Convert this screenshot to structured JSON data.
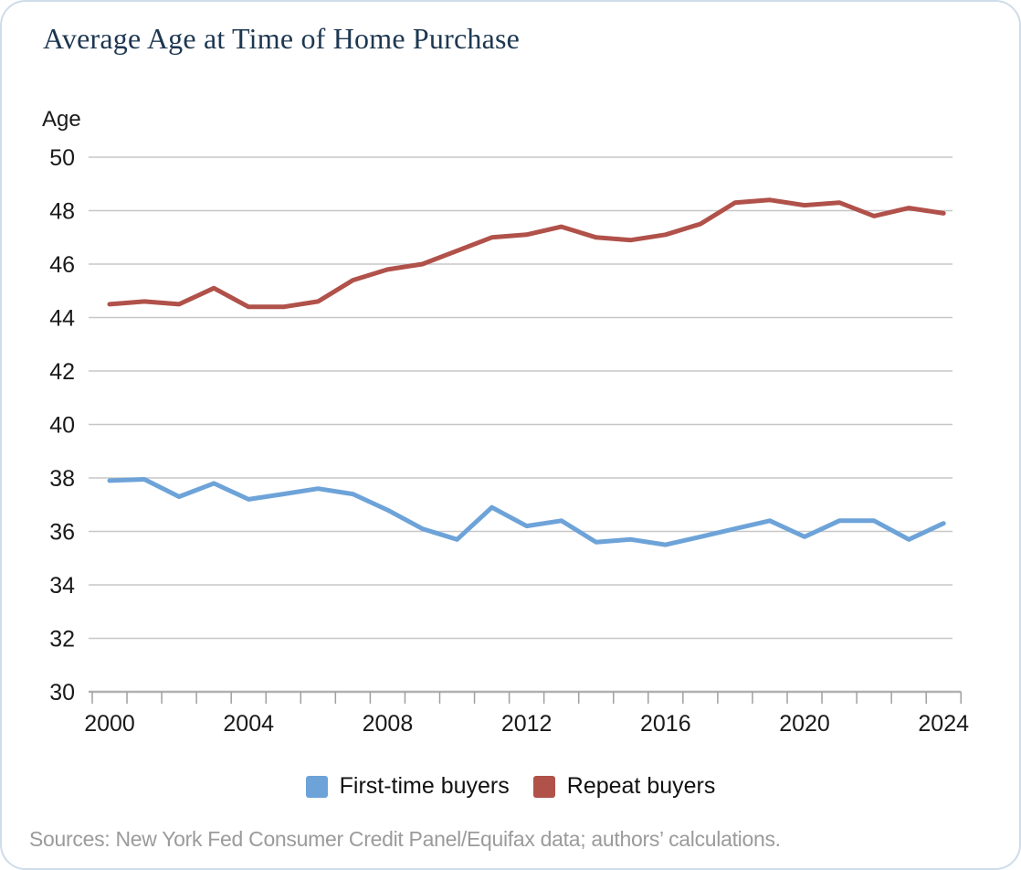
{
  "header": {
    "title": "Average Age at Time of Home Purchase"
  },
  "footer": {
    "sources": "Sources: New York Fed Consumer Credit Panel/Equifax data; authors’ calculations."
  },
  "colors": {
    "first_time_buyers": "#6da3d8",
    "repeat_buyers": "#b0514a",
    "gridline": "#c7c7c7",
    "axis_line": "#b0b0b0",
    "tick": "#a0a0a0",
    "tick_label": "#1a1a1a",
    "title_text": "#1d3751",
    "card_border": "#cfdcea"
  },
  "chart_data": {
    "type": "line",
    "title": "Average Age at Time of Home Purchase",
    "xlabel": "",
    "ylabel": "Age",
    "ylim": [
      30,
      50
    ],
    "grid": true,
    "legend_position": "bottom",
    "x": [
      2000,
      2001,
      2002,
      2003,
      2004,
      2005,
      2006,
      2007,
      2008,
      2009,
      2010,
      2011,
      2012,
      2013,
      2014,
      2015,
      2016,
      2017,
      2018,
      2019,
      2020,
      2021,
      2022,
      2023,
      2024
    ],
    "y_ticks": [
      30,
      32,
      34,
      36,
      38,
      40,
      42,
      44,
      46,
      48,
      50
    ],
    "x_tick_labels": [
      2000,
      2004,
      2008,
      2012,
      2016,
      2020,
      2024
    ],
    "series": [
      {
        "name": "First-time buyers",
        "color": "#6da3d8",
        "values": [
          37.9,
          37.95,
          37.3,
          37.8,
          37.2,
          37.4,
          37.6,
          37.4,
          36.8,
          36.1,
          35.7,
          36.9,
          36.2,
          36.4,
          35.6,
          35.7,
          35.5,
          35.8,
          36.1,
          36.4,
          35.8,
          36.4,
          36.4,
          35.7,
          36.3
        ]
      },
      {
        "name": "Repeat buyers",
        "color": "#b0514a",
        "values": [
          44.5,
          44.6,
          44.5,
          45.1,
          44.4,
          44.4,
          44.6,
          45.4,
          45.8,
          46.0,
          46.5,
          47.0,
          47.1,
          47.4,
          47.0,
          46.9,
          47.1,
          47.5,
          48.3,
          48.4,
          48.2,
          48.3,
          47.8,
          48.1,
          47.9
        ]
      }
    ]
  }
}
